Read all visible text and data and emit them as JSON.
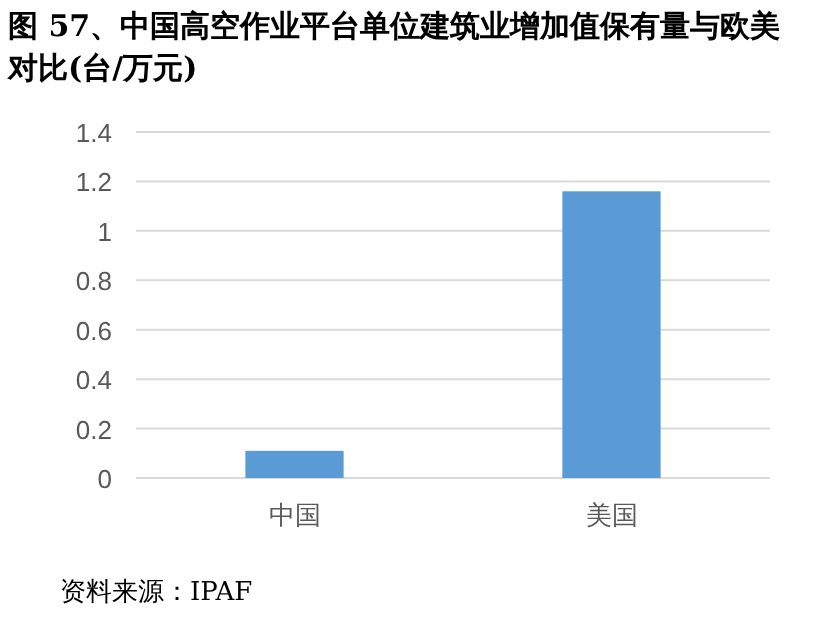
{
  "chart_data": {
    "type": "bar",
    "title": "图 57、中国高空作业平台单位建筑业增加值保有量与欧美对比(台/万元)",
    "categories": [
      "中国",
      "美国"
    ],
    "values": [
      0.11,
      1.16
    ],
    "color": "#5b9bd5",
    "ylim": [
      0,
      1.4
    ],
    "yticks": [
      0,
      0.2,
      0.4,
      0.6,
      0.8,
      1,
      1.2,
      1.4
    ],
    "grid": "y",
    "annotations": [
      "资料来源：IPAF"
    ]
  }
}
